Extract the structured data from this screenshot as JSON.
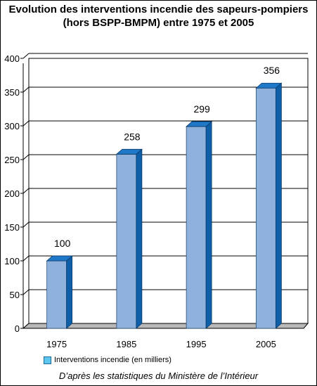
{
  "title_line1": "Evolution des interventions incendie des sapeurs-pompiers",
  "title_line2": "(hors BSPP-BMPM) entre 1975 et 2005",
  "legend_label": "Interventions incendie (en milliers)",
  "source": "D’après les statistiques du Ministère de l’Intérieur",
  "colors": {
    "bar_front": "#8fb2dc",
    "bar_side": "#0f5fa8",
    "bar_top": "#1f78c8",
    "legend_swatch": "#5cc6ef",
    "floor": "#b8b8b8"
  },
  "chart_data": {
    "type": "bar",
    "title": "Evolution des interventions incendie des sapeurs-pompiers (hors BSPP-BMPM) entre 1975 et 2005",
    "categories": [
      "1975",
      "1985",
      "1995",
      "2005"
    ],
    "series": [
      {
        "name": "Interventions incendie (en milliers)",
        "values": [
          100,
          258,
          299,
          356
        ]
      }
    ],
    "ylim": [
      0,
      400
    ],
    "yticks": [
      0,
      50,
      100,
      150,
      200,
      250,
      300,
      350,
      400
    ],
    "grid": true,
    "legend": "bottom-left",
    "data_labels": true,
    "style": "3d"
  }
}
